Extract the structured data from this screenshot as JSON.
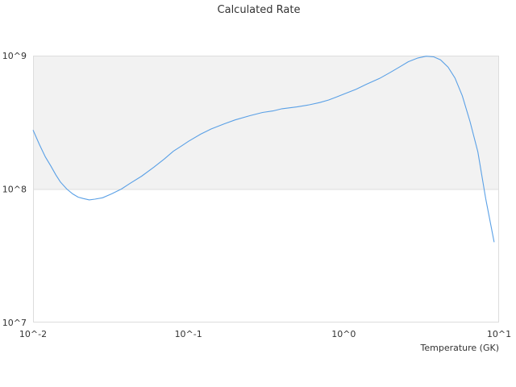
{
  "chart_data": {
    "type": "line",
    "title": "Calculated Rate",
    "xlabel": "Temperature (GK)",
    "ylabel": "",
    "x_scale": "log",
    "y_scale": "log",
    "xlim": [
      0.01,
      10
    ],
    "ylim": [
      10000000,
      1000000000
    ],
    "x_ticks": [
      0.01,
      0.1,
      1,
      10
    ],
    "x_tick_labels": [
      "10^-2",
      "10^-1",
      "10^0",
      "10^1"
    ],
    "y_ticks": [
      10000000,
      100000000,
      1000000000
    ],
    "y_tick_labels": [
      "10^7",
      "10^8",
      "10^9"
    ],
    "shaded_band": [
      100000000,
      1000000000
    ],
    "grid": false,
    "legend": "none",
    "colors": {
      "line": "#5aa0e6",
      "band": "#f2f2f2",
      "frame": "#dddddd"
    },
    "series": [
      {
        "x": [
          0.01,
          0.011,
          0.012,
          0.013,
          0.014,
          0.015,
          0.0165,
          0.018,
          0.0195,
          0.021,
          0.023,
          0.025,
          0.028,
          0.032,
          0.037,
          0.042,
          0.05,
          0.06,
          0.07,
          0.08,
          0.09,
          0.1,
          0.12,
          0.14,
          0.17,
          0.2,
          0.25,
          0.3,
          0.35,
          0.4,
          0.5,
          0.6,
          0.7,
          0.8,
          0.9,
          1.0,
          1.2,
          1.4,
          1.7,
          2.0,
          2.3,
          2.6,
          3.0,
          3.4,
          3.8,
          4.2,
          4.7,
          5.2,
          5.8,
          6.5,
          7.3,
          8.2,
          9.3
        ],
        "values": [
          277000000,
          215000000,
          174000000,
          149000000,
          128000000,
          113000000,
          100000000,
          92000000,
          87000000,
          85000000,
          83000000,
          84000000,
          86000000,
          92000000,
          100000000,
          110000000,
          125000000,
          146000000,
          168000000,
          192000000,
          210000000,
          228000000,
          258000000,
          282000000,
          308000000,
          330000000,
          355000000,
          375000000,
          385000000,
          400000000,
          413000000,
          428000000,
          445000000,
          465000000,
          490000000,
          515000000,
          560000000,
          610000000,
          675000000,
          750000000,
          825000000,
          900000000,
          960000000,
          990000000,
          980000000,
          930000000,
          820000000,
          680000000,
          500000000,
          320000000,
          190000000,
          85000000,
          40000000
        ]
      }
    ]
  }
}
